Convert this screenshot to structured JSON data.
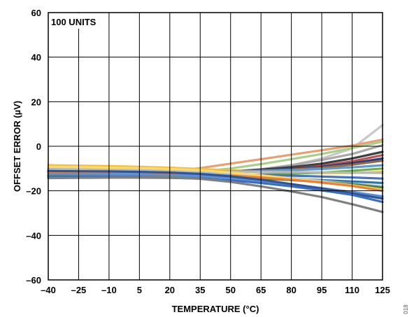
{
  "chart_data": {
    "type": "line",
    "title": "",
    "annotation": "100 UNITS",
    "xlabel": "TEMPERATURE (°C)",
    "ylabel": "OFFSET ERROR (µV)",
    "xlim": [
      -40,
      125
    ],
    "ylim": [
      -60,
      60
    ],
    "xticks": [
      -40,
      -25,
      -10,
      5,
      20,
      35,
      50,
      65,
      80,
      95,
      110,
      125
    ],
    "yticks": [
      60,
      40,
      20,
      0,
      -20,
      -40,
      -60
    ],
    "ytick_labels": [
      "60",
      "40",
      "20",
      "0",
      "–20",
      "–40",
      "–60"
    ],
    "xtick_labels": [
      "–40",
      "–25",
      "–10",
      "5",
      "20",
      "35",
      "50",
      "65",
      "80",
      "95",
      "110",
      "125"
    ],
    "grid": true,
    "legend": "none",
    "figure_id": "018",
    "x": [
      -40,
      -25,
      -10,
      5,
      20,
      35,
      50,
      65,
      80,
      95,
      110,
      125
    ],
    "series": [
      {
        "color": "#c8c8c8",
        "values": [
          -11.5,
          -11.6,
          -11.7,
          -11.8,
          -11.9,
          -12.0,
          -11.6,
          -10.5,
          -8.5,
          -5.5,
          -1.0,
          9.5
        ]
      },
      {
        "color": "#e8a070",
        "values": [
          -10.5,
          -10.7,
          -10.9,
          -11.1,
          -11.3,
          -9.8,
          -7.8,
          -5.8,
          -3.8,
          -1.8,
          0.3,
          3.0
        ]
      },
      {
        "color": "#a8d08c",
        "values": [
          -11.0,
          -11.2,
          -11.4,
          -11.5,
          -11.6,
          -11.3,
          -10.0,
          -8.0,
          -5.8,
          -3.5,
          -0.8,
          2.0
        ]
      },
      {
        "color": "#a8a8a8",
        "values": [
          -12.0,
          -12.1,
          -12.2,
          -12.3,
          -12.4,
          -12.2,
          -11.5,
          -10.3,
          -8.5,
          -6.2,
          -3.5,
          0.5
        ]
      },
      {
        "color": "#404040",
        "values": [
          -11.3,
          -11.4,
          -11.5,
          -11.6,
          -11.7,
          -11.6,
          -11.2,
          -10.5,
          -9.4,
          -7.8,
          -5.5,
          -2.5
        ]
      },
      {
        "color": "#c0504d",
        "values": [
          -11.8,
          -11.9,
          -12.0,
          -12.1,
          -12.2,
          -12.1,
          -11.8,
          -11.2,
          -10.2,
          -8.8,
          -6.8,
          -4.0
        ]
      },
      {
        "color": "#1f3f86",
        "values": [
          -11.6,
          -11.7,
          -11.8,
          -11.9,
          -12.0,
          -11.8,
          -11.4,
          -10.9,
          -10.2,
          -9.2,
          -7.6,
          -5.5
        ]
      },
      {
        "color": "#9b6a3a",
        "values": [
          -11.2,
          -11.3,
          -11.4,
          -11.5,
          -11.6,
          -11.5,
          -11.3,
          -11.0,
          -10.5,
          -9.6,
          -8.3,
          -6.5
        ]
      },
      {
        "color": "#f0c040",
        "values": [
          -8.5,
          -8.7,
          -8.9,
          -9.2,
          -9.6,
          -10.2,
          -10.8,
          -11.3,
          -11.7,
          -12.0,
          -12.0,
          -11.5
        ]
      },
      {
        "color": "#5b9bd5",
        "values": [
          -10.3,
          -10.5,
          -10.7,
          -10.9,
          -11.1,
          -11.3,
          -11.2,
          -11.0,
          -10.7,
          -10.2,
          -9.5,
          -8.5
        ]
      },
      {
        "color": "#70ad47",
        "values": [
          -12.8,
          -12.9,
          -13.0,
          -13.1,
          -13.2,
          -13.1,
          -12.9,
          -12.7,
          -12.3,
          -11.8,
          -11.0,
          -10.0
        ]
      },
      {
        "color": "#b8b8b8",
        "values": [
          -9.8,
          -10.0,
          -10.2,
          -10.5,
          -10.8,
          -11.1,
          -11.3,
          -11.5,
          -11.6,
          -11.7,
          -11.9,
          -12.0
        ]
      },
      {
        "color": "#4472c4",
        "values": [
          -11.4,
          -11.5,
          -11.6,
          -11.7,
          -11.9,
          -12.1,
          -12.4,
          -12.8,
          -13.2,
          -13.6,
          -14.0,
          -14.5
        ]
      },
      {
        "color": "#2e75b6",
        "values": [
          -12.2,
          -12.3,
          -12.4,
          -12.5,
          -12.7,
          -13.0,
          -13.5,
          -14.1,
          -14.6,
          -15.2,
          -15.8,
          -16.5
        ]
      },
      {
        "color": "#9dc3e6",
        "values": [
          -10.8,
          -11.0,
          -11.2,
          -11.4,
          -11.7,
          -12.0,
          -12.6,
          -13.3,
          -14.3,
          -15.5,
          -16.8,
          -18.0
        ]
      },
      {
        "color": "#548235",
        "values": [
          -13.2,
          -13.3,
          -13.4,
          -13.5,
          -13.6,
          -13.7,
          -14.0,
          -14.5,
          -15.2,
          -16.0,
          -17.0,
          -18.5
        ]
      },
      {
        "color": "#ffd966",
        "values": [
          -9.2,
          -9.4,
          -9.6,
          -9.8,
          -10.2,
          -10.8,
          -11.8,
          -13.0,
          -14.5,
          -16.0,
          -17.5,
          -19.5
        ]
      },
      {
        "color": "#ed7d31",
        "values": [
          -11.9,
          -12.0,
          -12.1,
          -12.2,
          -12.4,
          -12.7,
          -13.2,
          -14.0,
          -15.0,
          -16.3,
          -17.8,
          -20.0
        ]
      },
      {
        "color": "#5a8fd6",
        "values": [
          -12.5,
          -12.6,
          -12.7,
          -12.8,
          -13.0,
          -13.4,
          -14.3,
          -15.5,
          -17.0,
          -18.8,
          -20.5,
          -22.5
        ]
      },
      {
        "color": "#2f5597",
        "values": [
          -11.1,
          -11.2,
          -11.3,
          -11.5,
          -11.8,
          -12.4,
          -13.5,
          -15.0,
          -17.0,
          -19.0,
          -21.2,
          -23.5
        ]
      },
      {
        "color": "#3a6ec0",
        "values": [
          -13.8,
          -13.9,
          -14.0,
          -14.1,
          -14.2,
          -14.5,
          -15.3,
          -16.5,
          -18.0,
          -19.8,
          -21.8,
          -25.0
        ]
      },
      {
        "color": "#808080",
        "values": [
          -14.3,
          -14.2,
          -14.1,
          -14.0,
          -14.0,
          -14.6,
          -16.0,
          -18.0,
          -20.3,
          -22.8,
          -26.0,
          -29.5
        ]
      }
    ]
  }
}
